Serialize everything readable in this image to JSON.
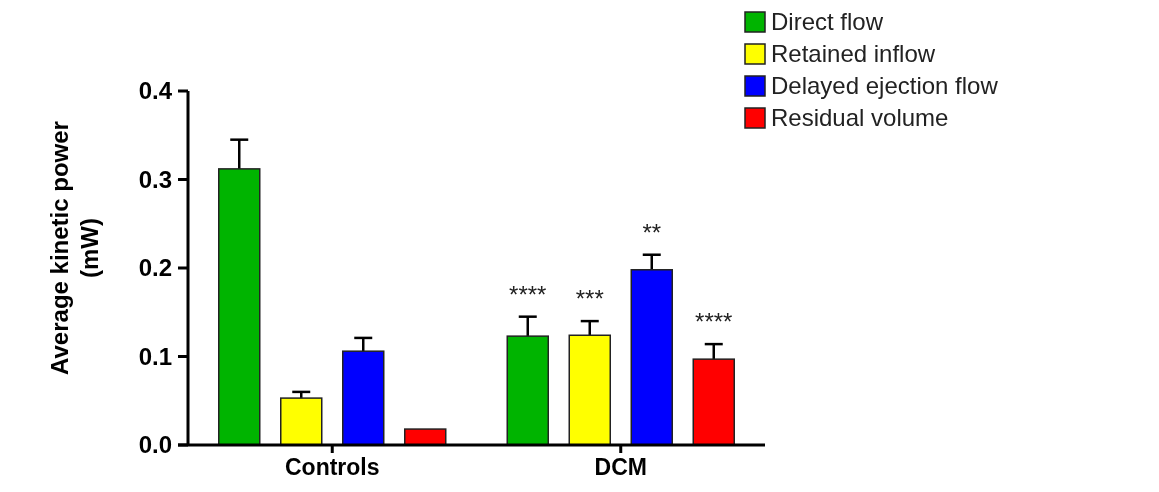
{
  "chart_data": {
    "type": "bar",
    "ylabel": "Average kinetic power\n(mW)",
    "categories": [
      "Controls",
      "DCM"
    ],
    "series": [
      {
        "name": "Direct flow",
        "color": "#00b400",
        "values": [
          0.312,
          0.123
        ],
        "errors": [
          0.033,
          0.022
        ]
      },
      {
        "name": "Retained inflow",
        "color": "#ffff00",
        "values": [
          0.053,
          0.124
        ],
        "errors": [
          0.007,
          0.016
        ]
      },
      {
        "name": "Delayed ejection flow",
        "color": "#0000ff",
        "values": [
          0.106,
          0.198
        ],
        "errors": [
          0.015,
          0.017
        ]
      },
      {
        "name": "Residual volume",
        "color": "#ff0000",
        "values": [
          0.018,
          0.097
        ],
        "errors": [
          null,
          0.017
        ]
      }
    ],
    "ylim": [
      0,
      0.4
    ],
    "yticks": [
      {
        "value": 0,
        "label": "0.0"
      },
      {
        "value": 0.1,
        "label": "0.1"
      },
      {
        "value": 0.2,
        "label": "0.2"
      },
      {
        "value": 0.3,
        "label": "0.3"
      },
      {
        "value": 0.4,
        "label": "0.4"
      }
    ],
    "annotations": [
      "****",
      "***",
      "**",
      "****"
    ],
    "legend": "top right",
    "grid": false
  }
}
